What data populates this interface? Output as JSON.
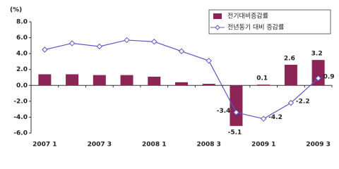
{
  "chart_data": {
    "type": "bar-line",
    "y_label": "(%)",
    "categories": [
      "2007 1",
      null,
      "2007 3",
      null,
      "2008 1",
      null,
      "2008 3",
      null,
      "2009 1",
      null,
      "2009 3"
    ],
    "series": [
      {
        "name": "전기대비증감률",
        "type": "bar",
        "color": "#8c2455",
        "values": [
          1.4,
          1.4,
          1.3,
          1.3,
          1.1,
          0.4,
          0.2,
          -5.1,
          0.1,
          2.6,
          3.2
        ],
        "value_labels": [
          null,
          null,
          null,
          null,
          null,
          null,
          null,
          "-5.1",
          "0.1",
          "2.6",
          "3.2"
        ]
      },
      {
        "name": "전년동기 대비 증감률",
        "type": "line",
        "color": "#5b5bc8",
        "values": [
          4.5,
          5.3,
          4.9,
          5.7,
          5.5,
          4.3,
          3.1,
          -3.4,
          -4.2,
          -2.2,
          0.9
        ],
        "value_labels": [
          null,
          null,
          null,
          null,
          null,
          null,
          null,
          "-3.4",
          "-4.2",
          "-2.2",
          "0.9"
        ]
      }
    ],
    "ylim": [
      -6,
      8
    ],
    "yticks": [
      {
        "value": -6,
        "label": "-6.0"
      },
      {
        "value": -4,
        "label": "-4.0"
      },
      {
        "value": -2,
        "label": "-2.0"
      },
      {
        "value": 0,
        "label": "0.0"
      },
      {
        "value": 2,
        "label": "2.0"
      },
      {
        "value": 4,
        "label": "4.0"
      },
      {
        "value": 6,
        "label": "6.0"
      },
      {
        "value": 8,
        "label": "8.0"
      }
    ],
    "grid": false,
    "legend": "top-right"
  }
}
